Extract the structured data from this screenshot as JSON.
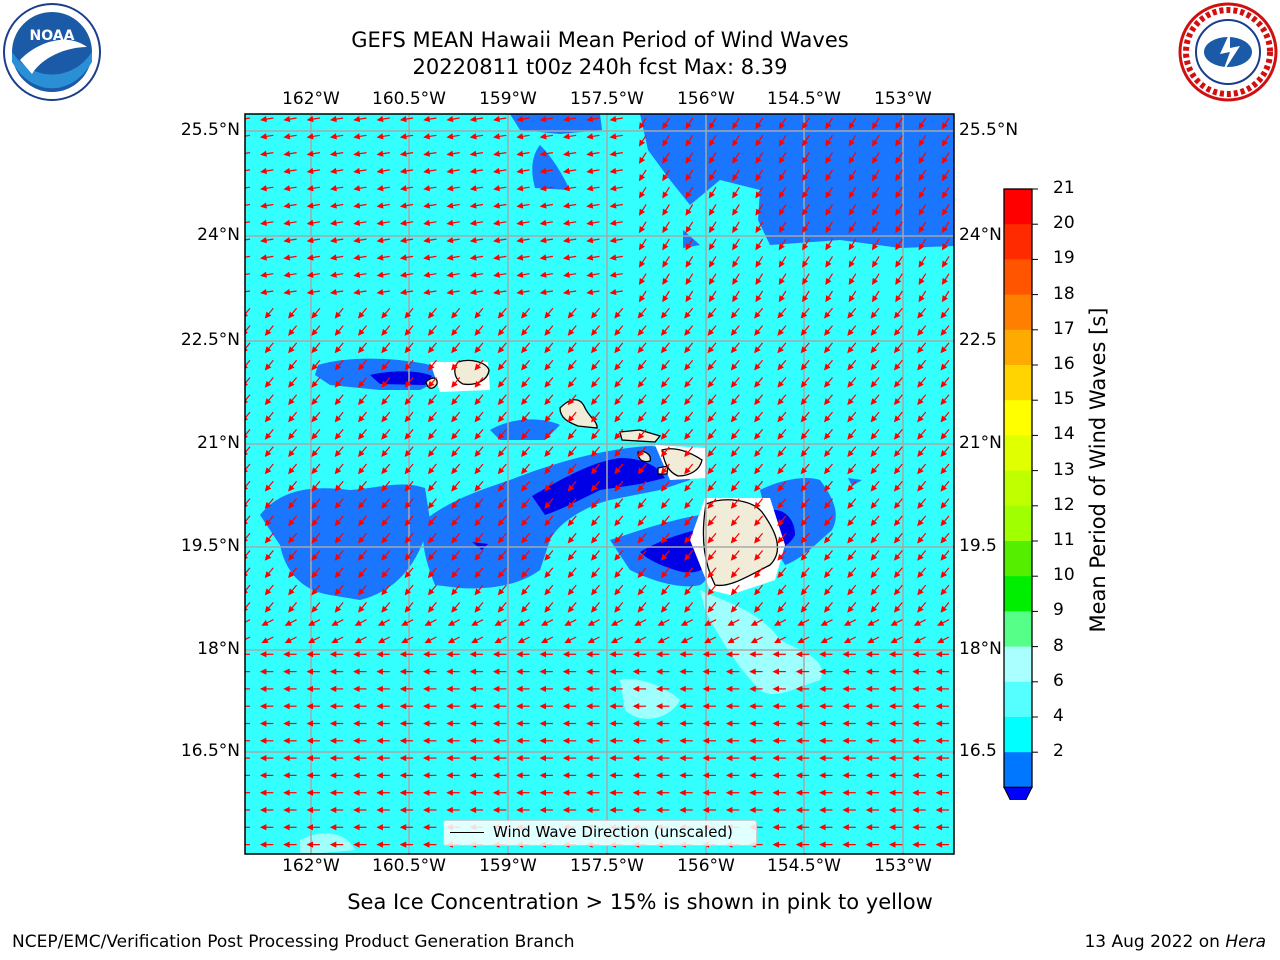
{
  "title_line1": "GEFS MEAN Hawaii Mean Period of Wind Waves",
  "title_line2": "20220811 t00z 240h fcst   Max: 8.39",
  "lon_labels": [
    "162°W",
    "160.5°W",
    "159°W",
    "157.5°W",
    "156°W",
    "154.5°W",
    "153°W"
  ],
  "lat_labels": [
    "25.5°N",
    "24°N",
    "22.5°N",
    "21°N",
    "19.5°N",
    "18°N",
    "16.5°N"
  ],
  "lat_labels_right": [
    "25.5°N",
    "24°N",
    "22.5",
    "21°N",
    "19.5",
    "18°N",
    "16.5"
  ],
  "legend_text": "Wind Wave Direction (unscaled)",
  "colorbar": {
    "label": "Mean Period of Wind Waves [s]",
    "ticks": [
      "21",
      "20",
      "19",
      "18",
      "17",
      "16",
      "15",
      "14",
      "13",
      "12",
      "11",
      "10",
      "9",
      "8",
      "6",
      "4",
      "2"
    ],
    "colors": [
      "#ff0000",
      "#ff2a00",
      "#ff5500",
      "#ff8000",
      "#ffaa00",
      "#ffd400",
      "#ffff00",
      "#e0ff00",
      "#c0ff00",
      "#a0ff00",
      "#55ee00",
      "#00ee00",
      "#55ff88",
      "#aaffff",
      "#55ffff",
      "#00ffff",
      "#0077ff"
    ],
    "under_color": "#0000ff"
  },
  "sea_ice_note": "Sea Ice Concentration > 15% is shown in pink to yellow",
  "footer_left": "NCEP/EMC/Verification Post Processing Product Generation Branch",
  "footer_right_date": "13 Aug 2022 on ",
  "footer_right_host": "Hera",
  "logo_left": {
    "name": "noaa-logo",
    "text": "NOAA"
  },
  "logo_right": {
    "name": "nws-logo"
  },
  "colors": {
    "ocean_base": "#33ffff",
    "wave_mid": "#1a75ff",
    "wave_low": "#0000e6",
    "land": "#f0ecd8",
    "arrow": "#ff0000"
  }
}
